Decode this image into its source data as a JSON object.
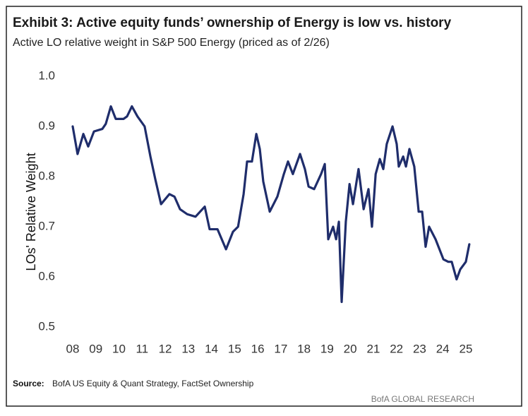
{
  "chart_data": {
    "type": "line",
    "title": "Exhibit 3: Active equity funds’ ownership of Energy is low vs. history",
    "subtitle": "Active LO relative weight in S&P 500 Energy (priced as of 2/26)",
    "y_label": "LOs' Relative Weight",
    "source_label": "Source:",
    "source_text": "BofA US Equity & Quant Strategy, FactSet Ownership",
    "footer": "BofA GLOBAL RESEARCH",
    "grid": false,
    "xlim": [
      8,
      25.2
    ],
    "xticks": [
      {
        "value": 8,
        "label": "08"
      },
      {
        "value": 9,
        "label": "09"
      },
      10,
      11,
      12,
      13,
      14,
      15,
      16,
      17,
      18,
      19,
      20,
      21,
      22,
      23,
      24,
      25
    ],
    "ylim": [
      0.5,
      1.0
    ],
    "yticks": [
      0.5,
      0.6,
      0.7,
      0.8,
      0.9,
      {
        "value": 1.0,
        "label": "1.0"
      }
    ],
    "x": [
      8.0,
      8.21,
      8.46,
      8.67,
      8.92,
      9.28,
      9.43,
      9.65,
      9.86,
      10.2,
      10.35,
      10.56,
      10.8,
      11.11,
      11.36,
      11.57,
      11.82,
      12.18,
      12.4,
      12.64,
      12.95,
      13.31,
      13.71,
      13.92,
      14.26,
      14.63,
      14.93,
      15.15,
      15.39,
      15.54,
      15.75,
      15.94,
      16.09,
      16.24,
      16.52,
      16.85,
      17.13,
      17.31,
      17.52,
      17.83,
      18.04,
      18.2,
      18.44,
      18.74,
      18.9,
      19.05,
      19.26,
      19.39,
      19.51,
      19.63,
      19.81,
      19.97,
      20.12,
      20.36,
      20.58,
      20.79,
      20.94,
      21.1,
      21.28,
      21.43,
      21.58,
      21.83,
      22.01,
      22.1,
      22.29,
      22.41,
      22.56,
      22.77,
      22.96,
      23.11,
      23.26,
      23.41,
      23.69,
      24.03,
      24.24,
      24.39,
      24.6,
      24.76,
      25.0,
      25.15
    ],
    "series": [
      {
        "name": "Active LO relative weight",
        "color": "#1f2d6b",
        "values": [
          0.9,
          0.845,
          0.885,
          0.86,
          0.89,
          0.895,
          0.905,
          0.94,
          0.915,
          0.915,
          0.92,
          0.94,
          0.92,
          0.9,
          0.84,
          0.795,
          0.745,
          0.765,
          0.76,
          0.735,
          0.725,
          0.72,
          0.74,
          0.695,
          0.695,
          0.655,
          0.69,
          0.7,
          0.765,
          0.83,
          0.83,
          0.885,
          0.855,
          0.79,
          0.73,
          0.76,
          0.805,
          0.83,
          0.805,
          0.845,
          0.815,
          0.78,
          0.775,
          0.805,
          0.825,
          0.675,
          0.7,
          0.675,
          0.71,
          0.55,
          0.71,
          0.785,
          0.745,
          0.815,
          0.735,
          0.775,
          0.7,
          0.805,
          0.835,
          0.815,
          0.865,
          0.9,
          0.865,
          0.82,
          0.84,
          0.82,
          0.855,
          0.82,
          0.73,
          0.73,
          0.66,
          0.7,
          0.675,
          0.635,
          0.63,
          0.63,
          0.595,
          0.615,
          0.63,
          0.665
        ]
      }
    ]
  }
}
